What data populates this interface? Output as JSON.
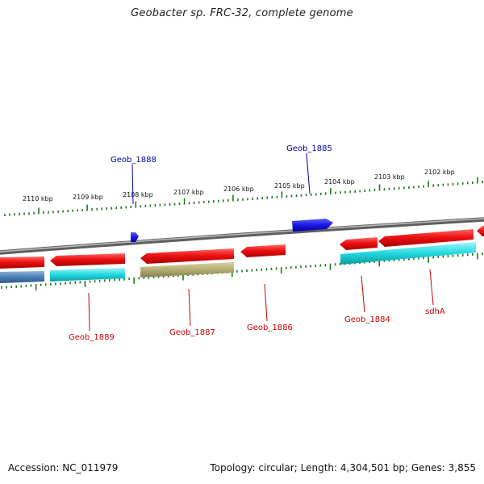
{
  "title": "Geobacter sp. FRC-32, complete genome",
  "footer": {
    "accession": "Accession: NC_011979",
    "topology": "Topology: circular; Length: 4,304,501 bp; Genes: 3,855"
  },
  "colors": {
    "backbone": "#8a8a8a",
    "tick": "#1a7a1a",
    "forward_gene": "#ee1111",
    "reverse_label": "#cc0000",
    "forward_label": "#0000aa",
    "blue_gene": "#1a1ae0",
    "cyan_gene": "#22d8e0",
    "olive_gene": "#b4ad72",
    "steel_gene": "#4a7fb5"
  },
  "kbp_labels": [
    "2110 kbp",
    "2109 kbp",
    "2108 kbp",
    "2107 kbp",
    "2106 kbp",
    "2105 kbp",
    "2104 kbp",
    "2103 kbp",
    "2102 kbp"
  ],
  "genes_above": [
    {
      "name": "Geob_1888"
    },
    {
      "name": "Geob_1885"
    }
  ],
  "genes_below": [
    {
      "name": "Geob_1889"
    },
    {
      "name": "Geob_1887"
    },
    {
      "name": "Geob_1886"
    },
    {
      "name": "Geob_1884"
    },
    {
      "name": "sdhA"
    }
  ]
}
